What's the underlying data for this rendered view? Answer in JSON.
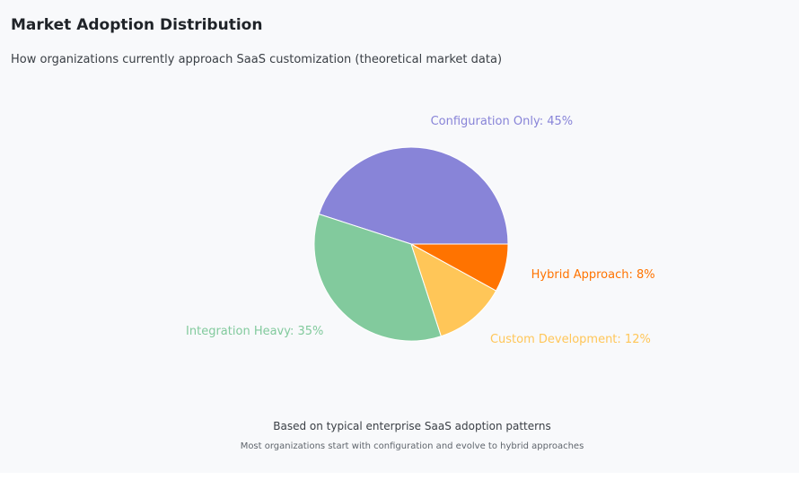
{
  "title": "Market Adoption Distribution",
  "subtitle": "How organizations currently approach SaaS customization (theoretical market data)",
  "footer": {
    "main": "Based on typical enterprise SaaS adoption patterns",
    "sub": "Most organizations start with configuration and evolve to hybrid approaches"
  },
  "chart_data": {
    "type": "pie",
    "title": "Market Adoption Distribution",
    "categories": [
      "Configuration Only",
      "Integration Heavy",
      "Custom Development",
      "Hybrid Approach"
    ],
    "values": [
      45,
      35,
      12,
      8
    ],
    "labels": [
      "Configuration Only: 45%",
      "Integration Heavy: 35%",
      "Custom Development: 12%",
      "Hybrid Approach: 8%"
    ],
    "colors": [
      "#8884d8",
      "#82ca9d",
      "#ffc658",
      "#ff7300"
    ],
    "legend": "none"
  }
}
